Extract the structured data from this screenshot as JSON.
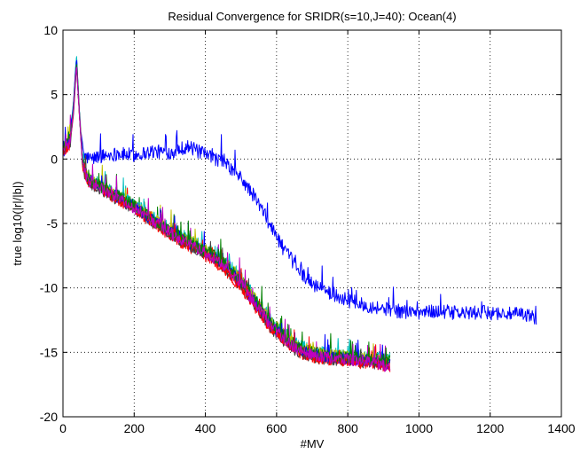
{
  "chart_data": {
    "type": "line",
    "title": "Residual Convergence for SRIDR(s=10,J=40): Ocean(4)",
    "xlabel": "#MV",
    "ylabel": "true log10(|r|/|b|)",
    "xlim": [
      0,
      1400
    ],
    "ylim": [
      -20,
      10
    ],
    "xticks": [
      0,
      200,
      400,
      600,
      800,
      1000,
      1200,
      1400
    ],
    "yticks": [
      -20,
      -15,
      -10,
      -5,
      0,
      5,
      10
    ],
    "grid": true,
    "legend": "none",
    "series": [
      {
        "color": "#0000ff",
        "x": [
          0,
          20,
          30,
          38,
          42,
          48,
          60,
          80,
          100,
          150,
          200,
          250,
          300,
          350,
          400,
          450,
          500,
          540,
          580,
          620,
          660,
          700,
          760,
          820,
          880,
          940,
          1000,
          1060,
          1120,
          1180,
          1240,
          1300,
          1330
        ],
        "y": [
          0.5,
          1.5,
          4.5,
          8.0,
          6.0,
          2.5,
          0.2,
          0.0,
          0.2,
          0.4,
          0.3,
          0.6,
          0.5,
          1.0,
          0.3,
          -0.2,
          -1.5,
          -3.0,
          -5.0,
          -7.0,
          -8.5,
          -9.7,
          -10.5,
          -11.2,
          -11.5,
          -11.8,
          -11.9,
          -11.8,
          -12.0,
          -11.9,
          -12.0,
          -12.1,
          -12.3
        ],
        "noise": 0.55,
        "spike_prob": 0.05,
        "spike_size": 1.8
      },
      {
        "color": "#ff0000",
        "x": [
          0,
          20,
          30,
          38,
          45,
          55,
          70,
          100,
          200,
          300,
          400,
          450,
          500,
          540,
          580,
          620,
          660,
          700,
          760,
          820,
          880,
          920
        ],
        "y": [
          0.5,
          1.2,
          3.8,
          7.6,
          4.0,
          -0.5,
          -1.8,
          -2.2,
          -4.0,
          -6.0,
          -7.5,
          -8.5,
          -10.0,
          -11.5,
          -13.0,
          -14.0,
          -15.0,
          -15.4,
          -15.6,
          -15.7,
          -15.8,
          -16.0
        ],
        "noise": 0.45,
        "spike_prob": 0.03,
        "spike_size": 1.4
      },
      {
        "color": "#008000",
        "x": [
          0,
          20,
          30,
          38,
          45,
          55,
          70,
          100,
          200,
          300,
          400,
          450,
          500,
          540,
          580,
          620,
          660,
          700,
          760,
          820,
          880,
          920
        ],
        "y": [
          0.8,
          1.4,
          4.2,
          7.9,
          4.2,
          -0.3,
          -1.6,
          -2.0,
          -3.7,
          -5.6,
          -7.2,
          -8.0,
          -9.4,
          -11.0,
          -12.6,
          -13.7,
          -14.6,
          -15.0,
          -15.3,
          -15.3,
          -15.5,
          -15.6
        ],
        "noise": 0.5,
        "spike_prob": 0.04,
        "spike_size": 1.6
      },
      {
        "color": "#00bfbf",
        "x": [
          0,
          20,
          30,
          38,
          45,
          55,
          70,
          100,
          200,
          300,
          400,
          450,
          500,
          540,
          580,
          620,
          660,
          700,
          760,
          820,
          880,
          920
        ],
        "y": [
          1.0,
          1.6,
          4.6,
          8.1,
          4.4,
          -0.1,
          -1.4,
          -1.9,
          -3.5,
          -5.4,
          -6.9,
          -7.8,
          -9.1,
          -10.7,
          -12.3,
          -13.5,
          -14.4,
          -14.9,
          -15.1,
          -15.2,
          -15.4,
          -15.5
        ],
        "noise": 0.5,
        "spike_prob": 0.04,
        "spike_size": 1.6
      },
      {
        "color": "#bf00bf",
        "x": [
          0,
          20,
          30,
          38,
          45,
          55,
          70,
          100,
          200,
          300,
          400,
          450,
          500,
          540,
          580,
          620,
          660,
          700,
          760,
          820,
          880,
          920
        ],
        "y": [
          0.6,
          1.3,
          4.0,
          7.4,
          4.1,
          -0.4,
          -1.7,
          -2.1,
          -3.8,
          -5.8,
          -7.3,
          -8.3,
          -9.7,
          -11.3,
          -12.9,
          -13.9,
          -14.8,
          -15.2,
          -15.5,
          -15.6,
          -15.8,
          -16.2
        ],
        "noise": 0.45,
        "spike_prob": 0.04,
        "spike_size": 1.5
      },
      {
        "color": "#bfbf00",
        "x": [
          0,
          20,
          30,
          38,
          45,
          55,
          70,
          100,
          200,
          300,
          400,
          450,
          500,
          540,
          580,
          620,
          660,
          700,
          760,
          820,
          880,
          920
        ],
        "y": [
          0.7,
          1.5,
          4.3,
          7.7,
          4.3,
          -0.2,
          -1.5,
          -2.0,
          -3.6,
          -5.5,
          -7.0,
          -7.9,
          -9.3,
          -10.9,
          -12.5,
          -13.6,
          -14.5,
          -15.0,
          -15.2,
          -15.4,
          -15.5,
          -15.6
        ],
        "noise": 0.5,
        "spike_prob": 0.04,
        "spike_size": 1.5
      },
      {
        "color": "#404040",
        "x": [
          0,
          20,
          30,
          38,
          45,
          55,
          70,
          100,
          200,
          300,
          400,
          450,
          500,
          540,
          580,
          620,
          660,
          700,
          760,
          820,
          880,
          920
        ],
        "y": [
          0.4,
          1.1,
          3.6,
          7.2,
          3.9,
          -0.6,
          -1.9,
          -2.3,
          -3.9,
          -5.9,
          -7.4,
          -8.4,
          -9.8,
          -11.4,
          -13.0,
          -14.1,
          -15.0,
          -15.4,
          -15.6,
          -15.7,
          -15.9,
          -16.0
        ],
        "noise": 0.45,
        "spike_prob": 0.04,
        "spike_size": 1.5
      },
      {
        "color": "#0000ff",
        "x": [
          0,
          20,
          30,
          38,
          45,
          55,
          70,
          100,
          200,
          300,
          400,
          450,
          500,
          540,
          580,
          620,
          660,
          700,
          760,
          820,
          880,
          920
        ],
        "y": [
          0.9,
          1.5,
          4.4,
          7.8,
          4.2,
          -0.3,
          -1.6,
          -2.1,
          -3.7,
          -5.7,
          -7.2,
          -8.1,
          -9.5,
          -11.1,
          -12.7,
          -13.8,
          -14.7,
          -15.1,
          -15.4,
          -15.5,
          -15.7,
          -15.9
        ],
        "noise": 0.45,
        "spike_prob": 0.04,
        "spike_size": 1.5
      },
      {
        "color": "#ff0000",
        "x": [
          0,
          20,
          30,
          38,
          45,
          55,
          70,
          100,
          200,
          300,
          400,
          450,
          500,
          540,
          580,
          620,
          660,
          700,
          760,
          820,
          880,
          920
        ],
        "y": [
          0.6,
          1.2,
          3.9,
          7.5,
          4.0,
          -0.4,
          -1.7,
          -2.2,
          -3.9,
          -5.8,
          -7.4,
          -8.4,
          -9.8,
          -11.4,
          -13.0,
          -14.0,
          -14.9,
          -15.3,
          -15.6,
          -15.8,
          -15.9,
          -16.1
        ],
        "noise": 0.45,
        "spike_prob": 0.04,
        "spike_size": 1.5
      },
      {
        "color": "#008000",
        "x": [
          0,
          20,
          30,
          38,
          45,
          55,
          70,
          100,
          200,
          300,
          400,
          450,
          500,
          540,
          580,
          620,
          660,
          700,
          760,
          820,
          880,
          920
        ],
        "y": [
          0.8,
          1.4,
          4.1,
          7.6,
          4.1,
          -0.3,
          -1.6,
          -2.0,
          -3.6,
          -5.6,
          -7.1,
          -8.0,
          -9.4,
          -11.0,
          -12.6,
          -13.7,
          -14.6,
          -15.1,
          -15.3,
          -15.4,
          -15.6,
          -15.7
        ],
        "noise": 0.5,
        "spike_prob": 0.04,
        "spike_size": 1.5
      },
      {
        "color": "#bf00bf",
        "x": [
          0,
          20,
          30,
          38,
          45,
          55,
          70,
          100,
          200,
          300,
          400,
          450,
          500,
          540,
          580,
          620,
          660,
          700,
          760,
          820,
          880,
          920
        ],
        "y": [
          0.7,
          1.3,
          4.0,
          7.4,
          4.0,
          -0.4,
          -1.7,
          -2.1,
          -3.8,
          -5.7,
          -7.3,
          -8.2,
          -9.6,
          -11.2,
          -12.8,
          -13.9,
          -14.8,
          -15.2,
          -15.5,
          -15.6,
          -15.8,
          -16.3
        ],
        "noise": 0.45,
        "spike_prob": 0.04,
        "spike_size": 1.5
      }
    ]
  }
}
